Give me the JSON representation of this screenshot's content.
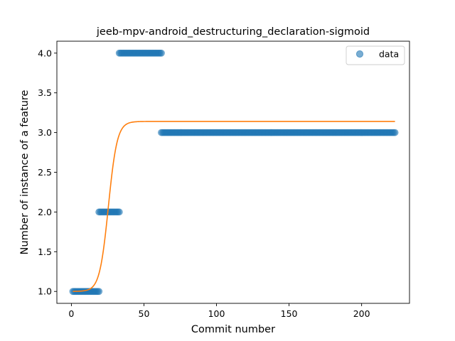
{
  "chart_data": {
    "type": "scatter",
    "title": "jeeb-mpv-android_destructuring_declaration-sigmoid",
    "xlabel": "Commit number",
    "ylabel": "Number of instance of a feature",
    "xlim": [
      -10,
      233
    ],
    "ylim": [
      0.85,
      4.15
    ],
    "xticks": [
      0,
      50,
      100,
      150,
      200
    ],
    "xtick_labels": [
      "0",
      "50",
      "100",
      "150",
      "200"
    ],
    "yticks": [
      1.0,
      1.5,
      2.0,
      2.5,
      3.0,
      3.5,
      4.0
    ],
    "ytick_labels": [
      "1.0",
      "1.5",
      "2.0",
      "2.5",
      "3.0",
      "3.5",
      "4.0"
    ],
    "grid": false,
    "legend": {
      "placement": "top-right",
      "entries": [
        "data"
      ]
    },
    "series": [
      {
        "name": "data",
        "kind": "scatter",
        "color": "#1f77b4",
        "segments": [
          {
            "x_start": 1,
            "x_end": 19,
            "y": 1
          },
          {
            "x_start": 19,
            "x_end": 33,
            "y": 2
          },
          {
            "x_start": 33,
            "x_end": 62,
            "y": 4
          },
          {
            "x_start": 62,
            "x_end": 223,
            "y": 3
          }
        ]
      },
      {
        "kind": "line",
        "color": "#ff7f0e",
        "model": "sigmoid",
        "params": {
          "L": 2.14,
          "k": 0.33,
          "x0": 25.5,
          "b": 1.0
        },
        "x_range": [
          1,
          223
        ]
      }
    ]
  }
}
